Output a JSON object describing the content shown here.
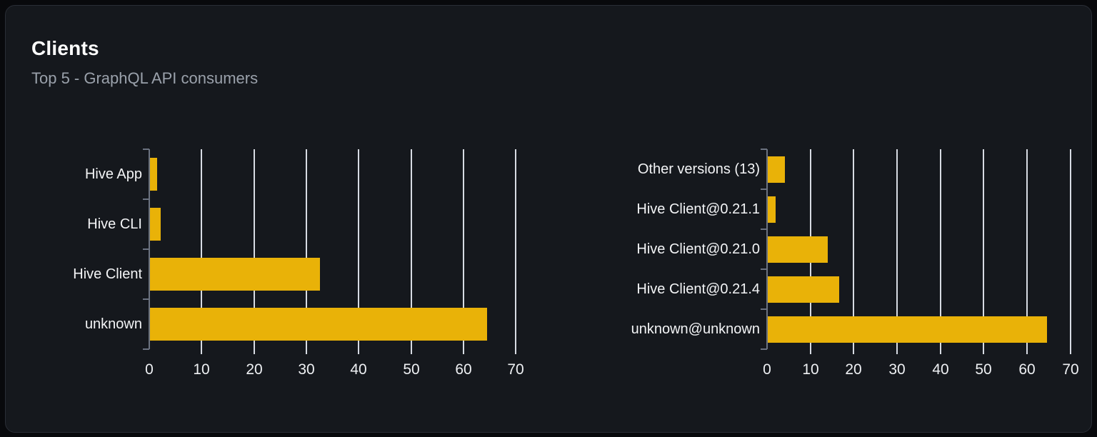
{
  "card": {
    "title": "Clients",
    "subtitle": "Top 5 - GraphQL API consumers"
  },
  "colors": {
    "bar": "#e9b208",
    "page_bg": "#08090c",
    "card_bg": "#15181d",
    "card_border": "#292d35",
    "gridline": "#d7dbe3",
    "axis": "#6b7280",
    "title_text": "#ffffff",
    "subtitle_text": "#9aa1ab",
    "label_text": "#f3f4f6"
  },
  "chart_data": [
    {
      "type": "bar",
      "orientation": "horizontal",
      "title": "",
      "xlabel": "",
      "ylabel": "",
      "categories": [
        "Hive App",
        "Hive CLI",
        "Hive Client",
        "unknown"
      ],
      "values": [
        1.4,
        2.1,
        32.4,
        64.3
      ],
      "xticks": [
        0,
        10,
        20,
        30,
        40,
        50,
        60,
        70
      ],
      "xlim": [
        0,
        72
      ],
      "grid": true,
      "legend": false
    },
    {
      "type": "bar",
      "orientation": "horizontal",
      "title": "",
      "xlabel": "",
      "ylabel": "",
      "categories": [
        "Other versions (13)",
        "Hive Client@0.21.1",
        "Hive Client@0.21.0",
        "Hive Client@0.21.4",
        "unknown@unknown"
      ],
      "values": [
        4.0,
        1.8,
        13.8,
        16.4,
        64.4
      ],
      "xticks": [
        0,
        10,
        20,
        30,
        40,
        50,
        60,
        70
      ],
      "xlim": [
        0,
        72
      ],
      "grid": true,
      "legend": false
    }
  ]
}
